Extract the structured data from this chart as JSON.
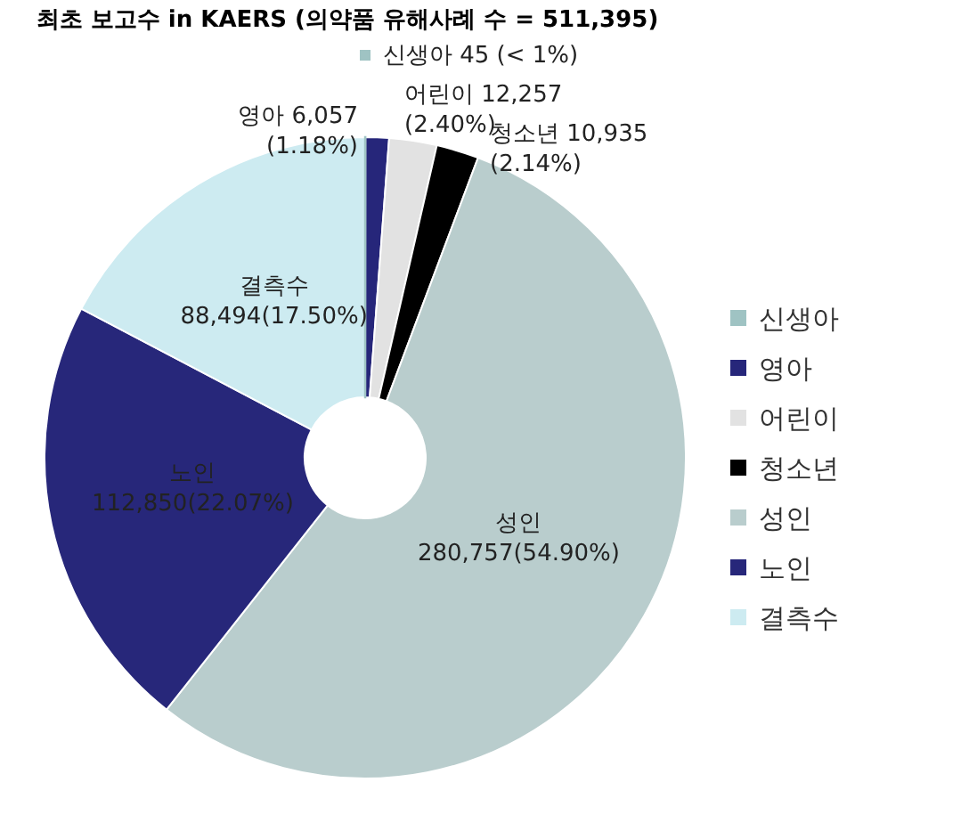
{
  "chart_data": {
    "type": "donut",
    "title": "최초 보고수 in KAERS (의약품 유해사례 수 = 511,395)",
    "categories": [
      "신생아",
      "영아",
      "어린이",
      "청소년",
      "성인",
      "노인",
      "결측수"
    ],
    "values": [
      45,
      6057,
      12257,
      10935,
      280757,
      112850,
      88494
    ],
    "colors": [
      "#9fc3c3",
      "#26267a",
      "#e2e2e2",
      "#000000",
      "#b9cdcd",
      "#27277a",
      "#cdebf1"
    ],
    "value_labels": [
      "신생아 45 (< 1%)",
      "영아 6,057\n(1.18%)",
      "어린이 12,257\n(2.40%)",
      "청소년 10,935\n(2.14%)",
      "성인\n280,757(54.90%)",
      "노인\n112,850(22.07%)",
      "결측수\n88,494(17.50%)"
    ],
    "legend": "right"
  }
}
